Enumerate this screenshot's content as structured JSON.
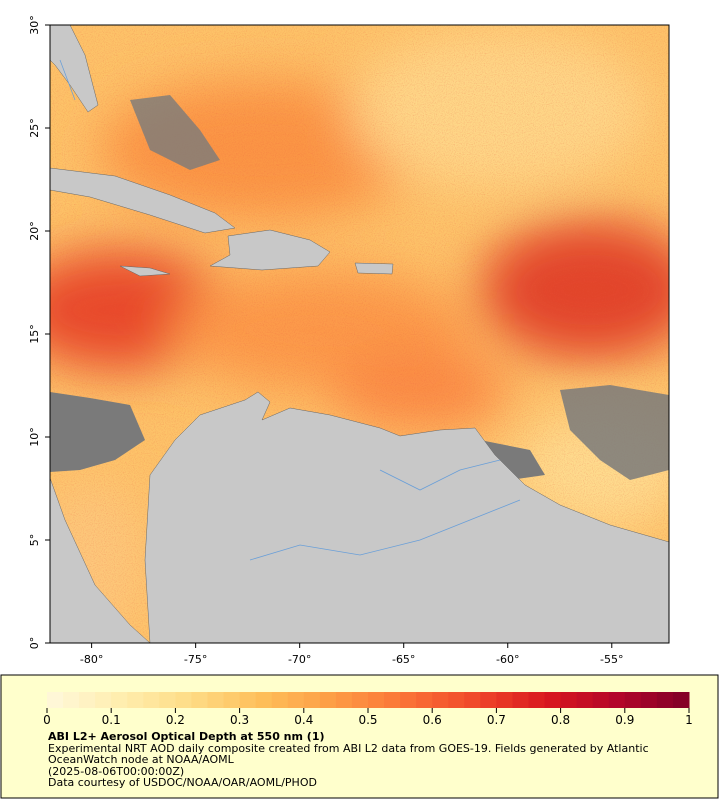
{
  "chart_data": {
    "type": "map",
    "xlim": [
      -82,
      -52.25
    ],
    "ylim": [
      0,
      30
    ],
    "xticks": [
      {
        "value": -80,
        "label": "-80°"
      },
      {
        "value": -75,
        "label": "-75°"
      },
      {
        "value": -70,
        "label": "-70°"
      },
      {
        "value": -65,
        "label": "-65°"
      },
      {
        "value": -60,
        "label": "-60°"
      },
      {
        "value": -55,
        "label": "-55°"
      }
    ],
    "yticks": [
      {
        "value": 0,
        "label": "0°"
      },
      {
        "value": 5,
        "label": "5°"
      },
      {
        "value": 10,
        "label": "10°"
      },
      {
        "value": 15,
        "label": "15°"
      },
      {
        "value": 20,
        "label": "20°"
      },
      {
        "value": 25,
        "label": "25°"
      },
      {
        "value": 30,
        "label": "30°"
      }
    ],
    "colorbar": {
      "lim": [
        0,
        1
      ],
      "ticks": [
        0,
        0.1,
        0.2,
        0.3,
        0.4,
        0.5,
        0.6,
        0.7,
        0.8,
        0.9,
        1
      ],
      "colors": [
        "#fff8dc",
        "#ffeeb0",
        "#fedc86",
        "#febf5a",
        "#fd9d45",
        "#fb7437",
        "#f0482a",
        "#d9181f",
        "#b3062a",
        "#800026"
      ]
    },
    "title": "ABI L2+ Aerosol Optical Depth at 550 nm (1)",
    "description": "Experimental NRT AOD daily composite created from ABI L2 data from GOES-19. Fields generated by Atlantic OceanWatch node at NOAA/AOML",
    "timestamp": "(2025-08-06T00:00:00Z)",
    "credit": "Data courtesy of USDOC/NOAA/OAR/AOML/PHOD"
  }
}
